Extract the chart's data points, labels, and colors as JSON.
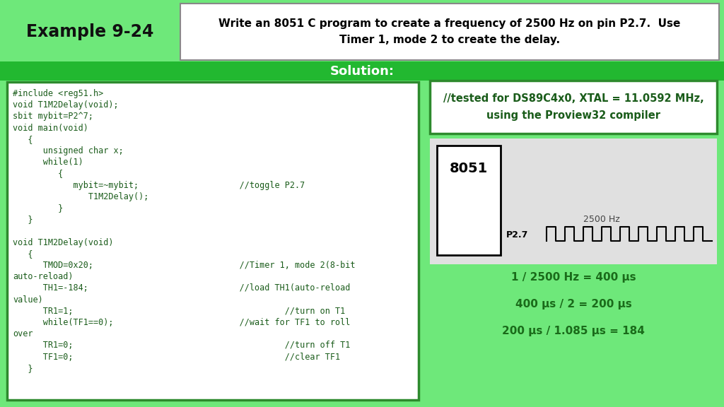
{
  "header_bg_color": "#6EE87A",
  "solution_bar_color": "#22b830",
  "bottom_bg_color": "#6EE87A",
  "title_box_color": "#ffffff",
  "title_border_color": "#aaaaaa",
  "title_text": "Write an 8051 C program to create a frequency of 2500 Hz on pin P2.7.  Use\nTimer 1, mode 2 to create the delay.",
  "example_label": "Example 9-24",
  "solution_text": "Solution:",
  "code_box_color": "#ffffff",
  "code_border_color": "#2d8a2d",
  "code_text_color": "#1a5c1a",
  "code_lines": [
    "#include <reg51.h>",
    "void T1M2Delay(void);",
    "sbit mybit=P2^7;",
    "void main(void)",
    "   {",
    "      unsigned char x;",
    "      while(1)",
    "         {",
    "            mybit=~mybit;                    //toggle P2.7",
    "               T1M2Delay();",
    "         }",
    "   }",
    "",
    "void T1M2Delay(void)",
    "   {",
    "      TMOD=0x20;                             //Timer 1, mode 2(8-bit",
    "auto-reload)",
    "      TH1=-184;                              //load TH1(auto-reload",
    "value)",
    "      TR1=1;                                          //turn on T1",
    "      while(TF1==0);                         //wait for TF1 to roll",
    "over",
    "      TR1=0;                                          //turn off T1",
    "      TF1=0;                                          //clear TF1",
    "   }"
  ],
  "right_box_color": "#ffffff",
  "right_border_color": "#2d8a2d",
  "right_note_text": "//tested for DS89C4x0, XTAL = 11.0592 MHz,\nusing the Proview32 compiler",
  "diagram_bg": "#e0e0e0",
  "chip_label": "8051",
  "pin_label": "P2.7",
  "freq_label": "2500 Hz",
  "calc_color": "#1a6b1a",
  "calc1": "1 / 2500 Hz = 400 μs",
  "calc2": "400 μs / 2 = 200 μs",
  "calc3": "200 μs / 1.085 μs = 184"
}
